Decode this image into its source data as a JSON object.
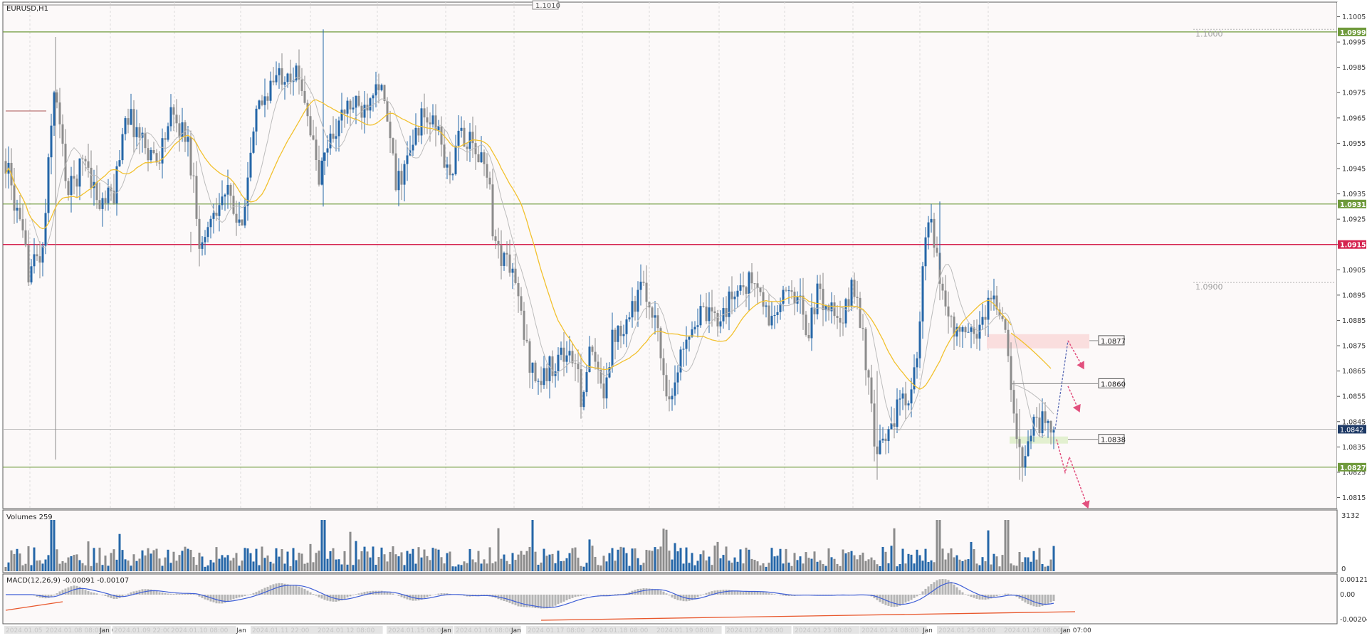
{
  "symbol_label": "EURUSD,H1",
  "colors": {
    "background": "#fcf9f9",
    "bull": "#2566a8",
    "bear": "#8c8c8c",
    "sma_fast": "#bcbcbc",
    "sma_slow": "#f2c12e",
    "level_green": "#6f9a3c",
    "level_red": "#d5234f",
    "arrow": "#e2507e",
    "macd_line": "#3f5fd6",
    "macd_hist": "#b5b5b5",
    "trend": "#e8572c"
  },
  "price_axis": {
    "ticks": [
      "1.1005",
      "1.0995",
      "1.0985",
      "1.0975",
      "1.0965",
      "1.0955",
      "1.0945",
      "1.0935",
      "1.0925",
      "1.0915",
      "1.0905",
      "1.0895",
      "1.0885",
      "1.0875",
      "1.0865",
      "1.0855",
      "1.0845",
      "1.0835",
      "1.0825",
      "1.0815"
    ],
    "current_price": "1.0842"
  },
  "levels": [
    {
      "label": "1.0999",
      "price": 1.0999,
      "kind": "green"
    },
    {
      "label": "1.0931",
      "price": 1.0931,
      "kind": "green"
    },
    {
      "label": "1.0915",
      "price": 1.0915,
      "kind": "red"
    },
    {
      "label": "1.0827",
      "price": 1.0827,
      "kind": "green"
    }
  ],
  "round_labels": [
    {
      "label": "1.1000",
      "price": 1.1
    },
    {
      "label": "1.0900",
      "price": 1.09
    }
  ],
  "top_label": "1.1010",
  "targets": [
    {
      "label": "1.0877",
      "price": 1.0877
    },
    {
      "label": "1.0860",
      "price": 1.086
    },
    {
      "label": "1.0838",
      "price": 1.0838
    }
  ],
  "volumes": {
    "label": "Volumes 259",
    "max_label": "3132",
    "zero_label": "0"
  },
  "macd": {
    "label": "MACD(12,26,9) -0.00091 -0.00107",
    "ticks": [
      "0.00121",
      "0.00",
      "-0.00204"
    ]
  },
  "time_labels": [
    "2024.01.05 22:00",
    "2024.01.08 08:00",
    "Jan 09",
    "2024.01.09 22:00",
    "2024.01.10 08:00",
    "Jan",
    "2024.01.11 22:00",
    "2024.01.12 08:00",
    "2024.01.15 08:00",
    "Jan",
    "2024.01.16 08:00",
    "Jan",
    "2024.01.17 08:00",
    "2024.01.18 08:00",
    "2024.01.19 08:00",
    "2024.01.22 08:00",
    "2024.01.23 08:00",
    "2024.01.24 08:00",
    "Jan",
    "2024.01.25 08:00",
    "2024.01.26 08:00",
    "Jan 07:00"
  ]
}
